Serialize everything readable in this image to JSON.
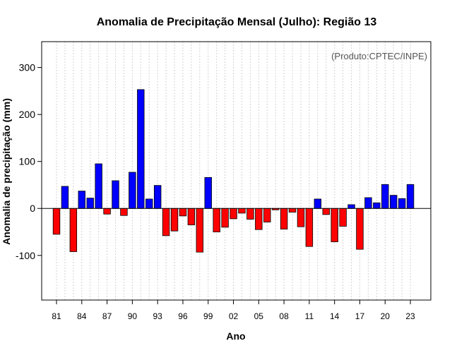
{
  "chart_data": {
    "type": "bar",
    "title": "Anomalia de Precipitação Mensal (Julho): Região 13",
    "xlabel": "Ano",
    "ylabel": "Anomalia de precipitação (mm)",
    "credit": "(Produto:CPTEC/INPE)",
    "ylim": [
      -195,
      355
    ],
    "yticks": [
      -100,
      0,
      100,
      200,
      300
    ],
    "ytick_labels": [
      "-100",
      "0",
      "100",
      "200",
      "300"
    ],
    "categories": [
      "1981",
      "1982",
      "1983",
      "1984",
      "1985",
      "1986",
      "1987",
      "1988",
      "1989",
      "1990",
      "1991",
      "1992",
      "1993",
      "1994",
      "1995",
      "1996",
      "1997",
      "1998",
      "1999",
      "2000",
      "2001",
      "2002",
      "2003",
      "2004",
      "2005",
      "2006",
      "2007",
      "2008",
      "2009",
      "2010",
      "2011",
      "2012",
      "2013",
      "2014",
      "2015",
      "2016",
      "2017",
      "2018",
      "2019",
      "2020",
      "2021",
      "2022",
      "2023"
    ],
    "values": [
      -55,
      47,
      -92,
      37,
      22,
      95,
      -12,
      59,
      -15,
      77,
      253,
      20,
      49,
      -58,
      -48,
      -16,
      -35,
      -93,
      66,
      -50,
      -40,
      -22,
      -10,
      -23,
      -45,
      -29,
      -3,
      -44,
      -8,
      -39,
      -81,
      20,
      -13,
      -71,
      -38,
      8,
      -87,
      23,
      12,
      51,
      28,
      21,
      51
    ],
    "xtick_labels": [
      "81",
      "84",
      "87",
      "90",
      "93",
      "96",
      "99",
      "02",
      "05",
      "08",
      "11",
      "14",
      "17",
      "20",
      "23"
    ],
    "xtick_indices": [
      0,
      3,
      6,
      9,
      12,
      15,
      18,
      21,
      24,
      27,
      30,
      33,
      36,
      39,
      42
    ],
    "colors": {
      "positive": "#0000ff",
      "negative": "#ff0000",
      "zero_line": "#000000",
      "grid": "#d3d3d3"
    },
    "grid": true
  }
}
